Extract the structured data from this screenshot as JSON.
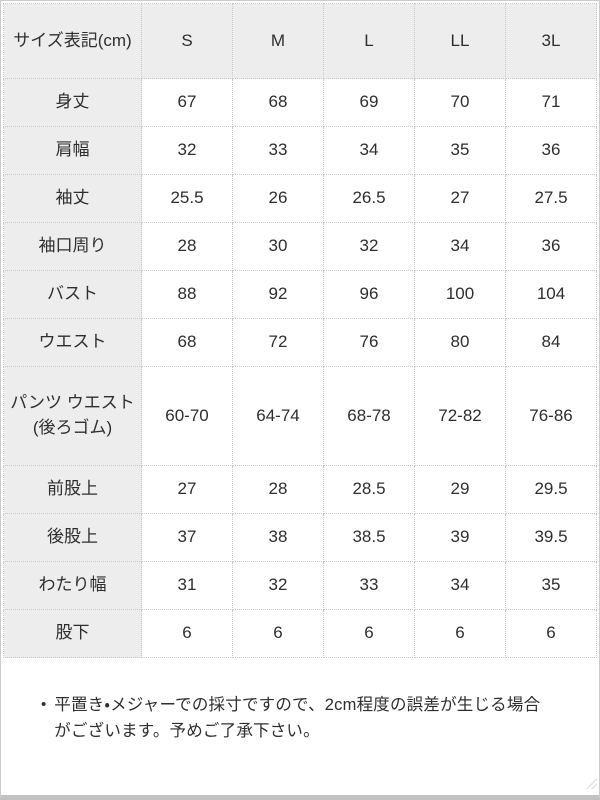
{
  "colors": {
    "header_bg": "#ededed",
    "cell_border": "#c8c8c8",
    "outer_border": "#cccccc",
    "bottom_border": "#c2c2c2",
    "text": "#2e2e2e"
  },
  "table": {
    "corner_label": "サイズ表記(cm)",
    "sizes": [
      "S",
      "M",
      "L",
      "LL",
      "3L"
    ],
    "rows": [
      {
        "label": "身丈",
        "values": [
          "67",
          "68",
          "69",
          "70",
          "71"
        ]
      },
      {
        "label": "肩幅",
        "values": [
          "32",
          "33",
          "34",
          "35",
          "36"
        ]
      },
      {
        "label": "袖丈",
        "values": [
          "25.5",
          "26",
          "26.5",
          "27",
          "27.5"
        ]
      },
      {
        "label": "袖口周り",
        "values": [
          "28",
          "30",
          "32",
          "34",
          "36"
        ]
      },
      {
        "label": "バスト",
        "values": [
          "88",
          "92",
          "96",
          "100",
          "104"
        ]
      },
      {
        "label": "ウエスト",
        "values": [
          "68",
          "72",
          "76",
          "80",
          "84"
        ]
      },
      {
        "label": [
          "パンツ ウエスト",
          "(後ろゴム)"
        ],
        "values": [
          "60-70",
          "64-74",
          "68-78",
          "72-82",
          "76-86"
        ],
        "tall": true
      },
      {
        "label": "前股上",
        "values": [
          "27",
          "28",
          "28.5",
          "29",
          "29.5"
        ]
      },
      {
        "label": "後股上",
        "values": [
          "37",
          "38",
          "38.5",
          "39",
          "39.5"
        ]
      },
      {
        "label": "わたり幅",
        "values": [
          "31",
          "32",
          "33",
          "34",
          "35"
        ]
      },
      {
        "label": "股下",
        "values": [
          "6",
          "6",
          "6",
          "6",
          "6"
        ]
      }
    ]
  },
  "note": {
    "bullet": "•",
    "text": "平置き・メジャーでの採寸ですので、2cm程度の誤差が生じる場合がございます。予めご了承下さい。"
  }
}
